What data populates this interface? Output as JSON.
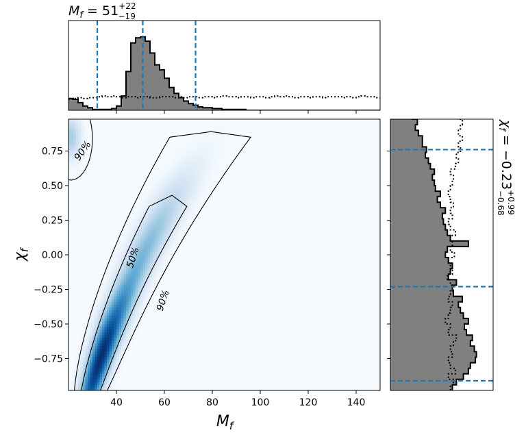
{
  "chart_data": [
    {
      "type": "heatmap",
      "panel": "joint-density",
      "xlabel_base": "M",
      "xlabel_sub": "f",
      "ylabel_base": "χ",
      "ylabel_sub": "f",
      "xlim": [
        20,
        150
      ],
      "ylim": [
        -0.98,
        0.98
      ],
      "x_ticks": [
        40,
        60,
        80,
        100,
        120,
        140
      ],
      "y_ticks": [
        0.75,
        0.5,
        0.25,
        0.0,
        -0.25,
        -0.5,
        -0.75
      ],
      "x_tick_labels": [
        "40",
        "60",
        "80",
        "100",
        "120",
        "140"
      ],
      "y_tick_labels": [
        "0.75",
        "0.50",
        "0.25",
        "0.00",
        "−0.25",
        "−0.50",
        "−0.75"
      ],
      "colormap": "Blues",
      "contours": [
        {
          "label": "50%",
          "label_at": [
            47,
            -0.02
          ],
          "label_rotation": -72
        },
        {
          "label": "90%",
          "label_at": [
            59.5,
            -0.33
          ],
          "label_rotation": -72
        },
        {
          "label": "90%",
          "label_at": [
            26,
            0.75
          ],
          "label_rotation": -55
        }
      ]
    },
    {
      "type": "area",
      "panel": "marginal-mass",
      "title_main": "M",
      "title_sub": "f",
      "title_value": " = 51",
      "title_sup": "+22",
      "title_inf": "−19",
      "xlim": [
        20,
        150
      ],
      "bin_width": 2,
      "bin_start": 20,
      "posterior": [
        0.14,
        0.13,
        0.09,
        0.05,
        0.03,
        0.01,
        0.01,
        0.01,
        0.01,
        0.02,
        0.05,
        0.17,
        0.46,
        0.8,
        0.86,
        0.87,
        0.82,
        0.68,
        0.54,
        0.48,
        0.38,
        0.27,
        0.2,
        0.15,
        0.11,
        0.08,
        0.06,
        0.04,
        0.03,
        0.03,
        0.02,
        0.02,
        0.01,
        0.01,
        0.01,
        0.01,
        0.01,
        0,
        0,
        0,
        0,
        0,
        0,
        0,
        0,
        0,
        0,
        0,
        0,
        0,
        0,
        0,
        0,
        0,
        0,
        0,
        0,
        0,
        0,
        0,
        0,
        0,
        0,
        0,
        0
      ],
      "prior": [
        0.13,
        0.14,
        0.15,
        0.14,
        0.15,
        0.15,
        0.16,
        0.17,
        0.16,
        0.17,
        0.16,
        0.15,
        0.16,
        0.16,
        0.15,
        0.16,
        0.16,
        0.15,
        0.15,
        0.16,
        0.16,
        0.16,
        0.15,
        0.16,
        0.15,
        0.16,
        0.16,
        0.15,
        0.16,
        0.16,
        0.15,
        0.16,
        0.17,
        0.16,
        0.16,
        0.15,
        0.16,
        0.16,
        0.15,
        0.16,
        0.16,
        0.15,
        0.16,
        0.17,
        0.16,
        0.17,
        0.16,
        0.15,
        0.16,
        0.16,
        0.15,
        0.16,
        0.16,
        0.15,
        0.16,
        0.16,
        0.16,
        0.15,
        0.16,
        0.15,
        0.16,
        0.17,
        0.16,
        0.16,
        0.15
      ],
      "quantiles": [
        32,
        51,
        73
      ]
    },
    {
      "type": "area",
      "panel": "marginal-spin",
      "title_main": "χ",
      "title_sub": "f",
      "title_value": " = −0.23",
      "title_sup": "+0.99",
      "title_inf": "−0.68",
      "ylim": [
        -0.98,
        0.98
      ],
      "bin_width": 0.04,
      "bin_start": -0.98,
      "posterior": [
        0.62,
        0.66,
        0.73,
        0.78,
        0.8,
        0.85,
        0.86,
        0.84,
        0.8,
        0.82,
        0.76,
        0.74,
        0.78,
        0.73,
        0.7,
        0.68,
        0.72,
        0.63,
        0.62,
        0.66,
        0.58,
        0.6,
        0.62,
        0.58,
        0.55,
        0.57,
        0.78,
        0.6,
        0.57,
        0.55,
        0.53,
        0.52,
        0.55,
        0.5,
        0.47,
        0.5,
        0.45,
        0.44,
        0.42,
        0.44,
        0.4,
        0.38,
        0.35,
        0.36,
        0.32,
        0.32,
        0.28,
        0.25,
        0.27,
        0.22,
        0.2,
        0.2
      ],
      "prior": [
        0.6,
        0.63,
        0.58,
        0.65,
        0.6,
        0.58,
        0.62,
        0.6,
        0.63,
        0.66,
        0.58,
        0.6,
        0.55,
        0.58,
        0.6,
        0.62,
        0.58,
        0.6,
        0.63,
        0.6,
        0.57,
        0.62,
        0.6,
        0.58,
        0.64,
        0.6,
        0.62,
        0.6,
        0.65,
        0.6,
        0.58,
        0.62,
        0.6,
        0.63,
        0.6,
        0.58,
        0.6,
        0.62,
        0.63,
        0.6,
        0.65,
        0.68,
        0.66,
        0.7,
        0.68,
        0.72,
        0.68,
        0.7,
        0.72,
        0.7,
        0.72,
        0.75
      ],
      "quantiles": [
        -0.91,
        -0.23,
        0.76
      ]
    }
  ]
}
